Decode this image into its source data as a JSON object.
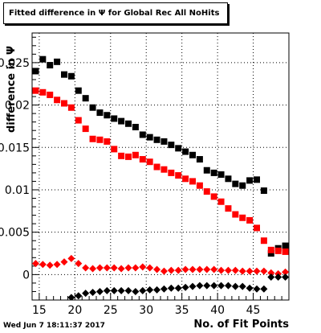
{
  "chart_data": {
    "type": "scatter",
    "title": "Fitted difference in  Ψ  for Global Rec All NoHits",
    "xlabel": "No. of Fit Points",
    "ylabel": "difference in Ψ",
    "xlim": [
      14,
      50
    ],
    "ylim": [
      -0.003,
      0.0285
    ],
    "x_ticks": [
      15,
      20,
      25,
      30,
      35,
      40,
      45
    ],
    "x_tick_labels": [
      "15",
      "20",
      "25",
      "30",
      "35",
      "40",
      "45"
    ],
    "y_ticks": [
      0,
      0.005,
      0.01,
      0.015,
      0.02,
      0.025
    ],
    "y_tick_labels": [
      "0",
      "0.005",
      "0.01",
      "0.015",
      "0.02",
      "0.025"
    ],
    "grid": true,
    "series": [
      {
        "color": "#000000",
        "marker": "square",
        "x": [
          14.5,
          15.5,
          16.5,
          17.5,
          18.5,
          19.5,
          20.5,
          21.5,
          22.5,
          23.5,
          24.5,
          25.5,
          26.5,
          27.5,
          28.5,
          29.5,
          30.5,
          31.5,
          32.5,
          33.5,
          34.5,
          35.5,
          36.5,
          37.5,
          38.5,
          39.5,
          40.5,
          41.5,
          42.5,
          43.5,
          44.5,
          45.5,
          46.5,
          47.5,
          48.5,
          49.5
        ],
        "y": [
          0.024,
          0.0254,
          0.0247,
          0.0251,
          0.0236,
          0.0234,
          0.0217,
          0.0208,
          0.0197,
          0.0191,
          0.0188,
          0.0184,
          0.0181,
          0.0178,
          0.0174,
          0.0165,
          0.0162,
          0.0159,
          0.0157,
          0.0153,
          0.0149,
          0.0145,
          0.0141,
          0.0136,
          0.0123,
          0.012,
          0.0118,
          0.0113,
          0.0107,
          0.0105,
          0.0111,
          0.0112,
          0.0099,
          0.0025,
          0.0031,
          0.0034
        ]
      },
      {
        "color": "#ff0000",
        "marker": "square",
        "x": [
          14.5,
          15.5,
          16.5,
          17.5,
          18.5,
          19.5,
          20.5,
          21.5,
          22.5,
          23.5,
          24.5,
          25.5,
          26.5,
          27.5,
          28.5,
          29.5,
          30.5,
          31.5,
          32.5,
          33.5,
          34.5,
          35.5,
          36.5,
          37.5,
          38.5,
          39.5,
          40.5,
          41.5,
          42.5,
          43.5,
          44.5,
          45.5,
          46.5,
          47.5,
          48.5,
          49.5
        ],
        "y": [
          0.0217,
          0.0215,
          0.0212,
          0.0206,
          0.0202,
          0.0197,
          0.0182,
          0.0172,
          0.016,
          0.0159,
          0.0157,
          0.0148,
          0.014,
          0.0139,
          0.0141,
          0.0136,
          0.0133,
          0.0127,
          0.0124,
          0.012,
          0.0117,
          0.0113,
          0.011,
          0.0105,
          0.0098,
          0.0092,
          0.0086,
          0.0078,
          0.0071,
          0.0067,
          0.0064,
          0.0055,
          0.004,
          0.0029,
          0.0028,
          0.0027
        ]
      },
      {
        "color": "#ff0000",
        "marker": "diamond",
        "x": [
          14.5,
          15.5,
          16.5,
          17.5,
          18.5,
          19.5,
          20.5,
          21.5,
          22.5,
          23.5,
          24.5,
          25.5,
          26.5,
          27.5,
          28.5,
          29.5,
          30.5,
          31.5,
          32.5,
          33.5,
          34.5,
          35.5,
          36.5,
          37.5,
          38.5,
          39.5,
          40.5,
          41.5,
          42.5,
          43.5,
          44.5,
          45.5,
          46.5,
          47.5,
          48.5,
          49.5
        ],
        "y": [
          0.0013,
          0.0012,
          0.0011,
          0.0012,
          0.0015,
          0.0019,
          0.0013,
          0.0008,
          0.0007,
          0.0008,
          0.0008,
          0.0008,
          0.0007,
          0.0008,
          0.0008,
          0.0009,
          0.0008,
          0.0006,
          0.0004,
          0.0005,
          0.0005,
          0.0006,
          0.0006,
          0.0006,
          0.0006,
          0.0006,
          0.0005,
          0.0005,
          0.0005,
          0.0004,
          0.0004,
          0.0004,
          0.0004,
          0.0002,
          0.0001,
          0.0003
        ]
      },
      {
        "color": "#000000",
        "marker": "diamond",
        "x": [
          19.5,
          20.5,
          21.5,
          22.5,
          23.5,
          24.5,
          25.5,
          26.5,
          27.5,
          28.5,
          29.5,
          30.5,
          31.5,
          32.5,
          33.5,
          34.5,
          35.5,
          36.5,
          37.5,
          38.5,
          39.5,
          40.5,
          41.5,
          42.5,
          43.5,
          44.5,
          45.5,
          46.5,
          47.5,
          48.5,
          49.5
        ],
        "y": [
          -0.0027,
          -0.0025,
          -0.0022,
          -0.0021,
          -0.002,
          -0.0019,
          -0.0019,
          -0.0019,
          -0.0019,
          -0.002,
          -0.0019,
          -0.0018,
          -0.0018,
          -0.0017,
          -0.0016,
          -0.0016,
          -0.0015,
          -0.0014,
          -0.0013,
          -0.0013,
          -0.0013,
          -0.0013,
          -0.0013,
          -0.0014,
          -0.0014,
          -0.0016,
          -0.0017,
          -0.0017,
          -0.0003,
          -0.0003,
          -0.0003
        ]
      }
    ]
  },
  "stamp": "Wed Jun  7 18:11:37 2017"
}
